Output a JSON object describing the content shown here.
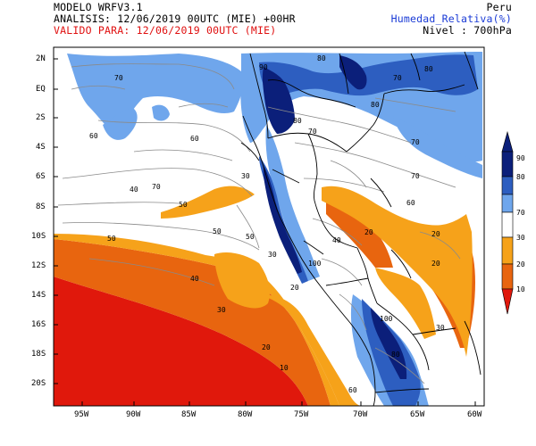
{
  "header": {
    "model": "MODELO WRFV3.1",
    "analysis": "ANALISIS: 12/06/2019 00UTC (MIE) +00HR",
    "valid": "VALIDO PARA: 12/06/2019 00UTC (MIE)",
    "region": "Peru",
    "variable": "Humedad_Relativa(%)",
    "level": "Nivel : 700hPa"
  },
  "axes": {
    "lon_labels": [
      "95W",
      "90W",
      "85W",
      "80W",
      "75W",
      "70W",
      "65W",
      "60W"
    ],
    "lat_labels": [
      "2N",
      "EQ",
      "2S",
      "4S",
      "6S",
      "8S",
      "10S",
      "12S",
      "14S",
      "16S",
      "18S",
      "20S"
    ]
  },
  "colorbar": {
    "labels": [
      "90",
      "80",
      "70",
      "30",
      "20",
      "10"
    ],
    "colors": {
      "c90_100": "#0b1f7a",
      "c80_90": "#2d5ec0",
      "c70_80": "#6fa6ec",
      "c30_70": "#ffffff",
      "c20_30": "#f6a21a",
      "c10_20": "#e8650f",
      "c0_10": "#e0180c"
    }
  },
  "contour_labels": [
    "70",
    "70",
    "80",
    "80",
    "80",
    "80",
    "70",
    "60",
    "60",
    "70",
    "70",
    "70",
    "90",
    "60",
    "50",
    "40",
    "40",
    "50",
    "30",
    "50",
    "30",
    "50",
    "30",
    "20",
    "20",
    "20",
    "30",
    "20",
    "20",
    "10",
    "40",
    "100",
    "100",
    "80",
    "60"
  ]
}
